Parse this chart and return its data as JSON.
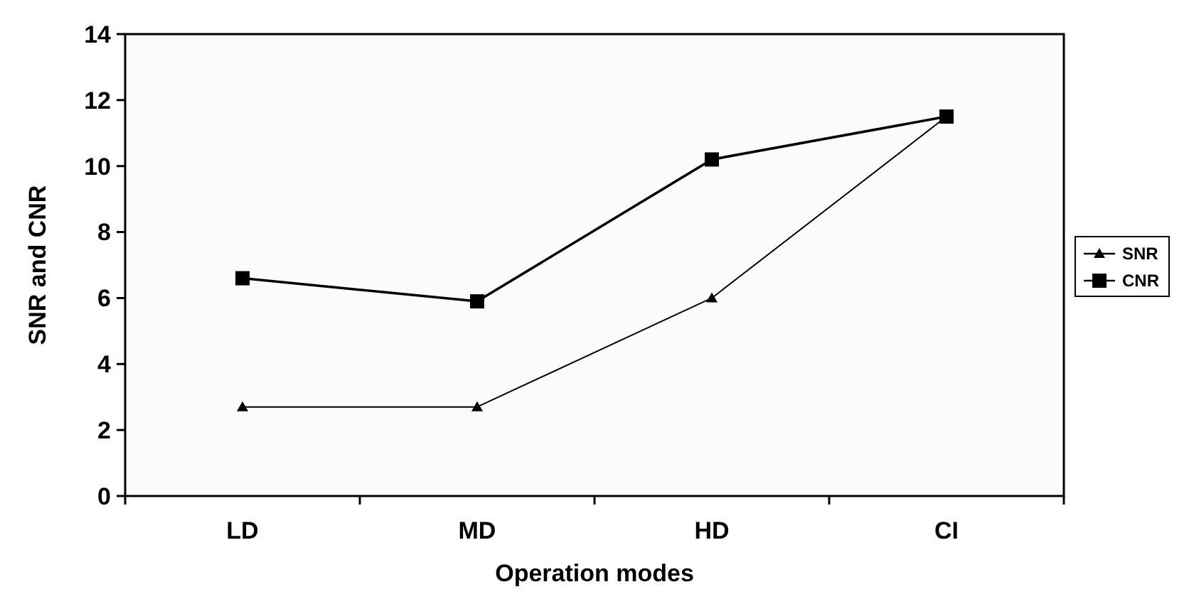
{
  "chart_data": {
    "type": "line",
    "xlabel": "Operation modes",
    "ylabel": "SNR and CNR",
    "categories": [
      "LD",
      "MD",
      "HD",
      "CI"
    ],
    "series": [
      {
        "name": "SNR",
        "color": "#000000",
        "values": [
          2.7,
          2.7,
          6.0,
          11.5
        ],
        "marker": "triangle"
      },
      {
        "name": "CNR",
        "color": "#000000",
        "values": [
          6.6,
          5.9,
          10.2,
          11.5
        ],
        "marker": "square"
      }
    ],
    "ylim": [
      0,
      14
    ],
    "yticks": [
      0,
      2,
      4,
      6,
      8,
      10,
      12,
      14
    ],
    "grid": false,
    "legend": "right"
  }
}
